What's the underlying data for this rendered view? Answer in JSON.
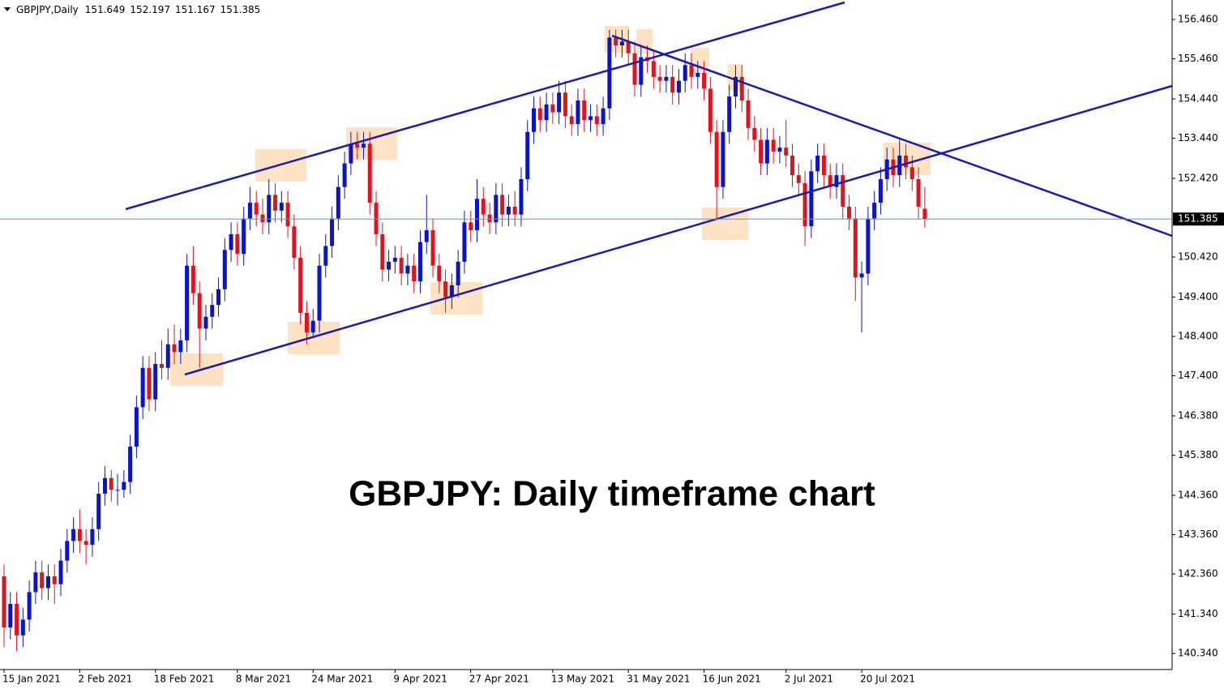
{
  "chart_data": {
    "type": "candlestick",
    "symbol": "GBPJPY,Daily",
    "annotation": "GBPJPY: Daily timeframe chart",
    "up_color": "#0a14c8",
    "down_color": "#e0141e",
    "last_price": 151.385,
    "ylim": [
      139.93,
      156.955
    ],
    "yticks": [
      {
        "value": 140.34,
        "label": "140.340"
      },
      {
        "value": 141.34,
        "label": "141.340"
      },
      {
        "value": 142.36,
        "label": "142.360"
      },
      {
        "value": 143.36,
        "label": "143.360"
      },
      {
        "value": 144.36,
        "label": "144.360"
      },
      {
        "value": 145.38,
        "label": "145.380"
      },
      {
        "value": 146.38,
        "label": "146.380"
      },
      {
        "value": 147.4,
        "label": "147.400"
      },
      {
        "value": 148.4,
        "label": "148.400"
      },
      {
        "value": 149.4,
        "label": "149.400"
      },
      {
        "value": 150.42,
        "label": "150.420"
      },
      {
        "value": 152.42,
        "label": "152.420"
      },
      {
        "value": 153.44,
        "label": "153.440"
      },
      {
        "value": 154.44,
        "label": "154.440"
      },
      {
        "value": 155.46,
        "label": "155.460"
      },
      {
        "value": 156.46,
        "label": "156.460"
      }
    ],
    "categories": [
      "15 Jan 2021",
      null,
      null,
      null,
      null,
      null,
      null,
      null,
      null,
      null,
      null,
      null,
      "2 Feb 2021",
      null,
      null,
      null,
      null,
      null,
      null,
      null,
      null,
      null,
      null,
      null,
      "18 Feb 2021",
      null,
      null,
      null,
      null,
      null,
      null,
      null,
      null,
      null,
      null,
      null,
      null,
      "8 Mar 2021",
      null,
      null,
      null,
      null,
      null,
      null,
      null,
      null,
      null,
      null,
      null,
      "24 Mar 2021",
      null,
      null,
      null,
      null,
      null,
      null,
      null,
      null,
      null,
      null,
      null,
      null,
      "9 Apr 2021",
      null,
      null,
      null,
      null,
      null,
      null,
      null,
      null,
      null,
      null,
      null,
      "27 Apr 2021",
      null,
      null,
      null,
      null,
      null,
      null,
      null,
      null,
      null,
      null,
      null,
      null,
      "13 May 2021",
      null,
      null,
      null,
      null,
      null,
      null,
      null,
      null,
      null,
      null,
      null,
      "31 May 2021",
      null,
      null,
      null,
      null,
      null,
      null,
      null,
      null,
      null,
      null,
      null,
      "16 Jun 2021",
      null,
      null,
      null,
      null,
      null,
      null,
      null,
      null,
      null,
      null,
      null,
      null,
      "2 Jul 2021",
      null,
      null,
      null,
      null,
      null,
      null,
      null,
      null,
      null,
      null,
      null,
      "20 Jul 2021",
      null,
      null,
      null,
      null,
      null,
      null,
      null,
      null,
      null,
      null
    ],
    "open": [
      142.3,
      141.0,
      141.6,
      140.8,
      141.2,
      141.9,
      142.4,
      142.0,
      142.3,
      142.1,
      142.7,
      143.2,
      143.5,
      143.2,
      143.1,
      143.5,
      144.4,
      144.8,
      144.5,
      144.5,
      144.7,
      145.6,
      146.6,
      147.6,
      146.8,
      147.7,
      147.6,
      148.2,
      148.0,
      148.3,
      150.2,
      149.5,
      148.6,
      148.9,
      149.2,
      149.6,
      150.6,
      151.0,
      150.5,
      151.4,
      151.8,
      151.5,
      151.3,
      152.0,
      151.6,
      151.8,
      151.2,
      150.4,
      149.0,
      148.5,
      148.8,
      150.2,
      150.7,
      151.4,
      152.2,
      152.8,
      153.3,
      153.2,
      153.3,
      151.8,
      151.0,
      150.1,
      150.3,
      150.4,
      150.0,
      150.2,
      149.8,
      150.8,
      151.1,
      150.2,
      149.8,
      149.4,
      149.7,
      150.3,
      151.3,
      151.1,
      151.9,
      151.5,
      151.3,
      152.0,
      151.5,
      151.7,
      151.5,
      152.4,
      153.6,
      154.2,
      153.9,
      154.3,
      154.1,
      154.6,
      154.0,
      153.8,
      154.4,
      153.9,
      154.0,
      153.8,
      154.2,
      156.0,
      155.8,
      155.9,
      155.6,
      154.8,
      155.5,
      155.4,
      155.0,
      154.9,
      155.0,
      154.6,
      154.9,
      155.3,
      155.0,
      155.1,
      154.7,
      153.6,
      152.2,
      153.6,
      154.5,
      155.0,
      154.4,
      153.7,
      153.4,
      152.8,
      153.4,
      153.1,
      153.2,
      153.0,
      152.5,
      152.3,
      151.2,
      152.6,
      153.0,
      152.5,
      152.2,
      152.5,
      151.7,
      151.4,
      149.9,
      150.0,
      151.4,
      151.8,
      152.4,
      152.9,
      152.5,
      153.0,
      152.7,
      152.4,
      151.649
    ],
    "high": [
      142.6,
      141.9,
      141.9,
      141.5,
      142.2,
      142.7,
      142.7,
      142.6,
      142.6,
      143.0,
      143.5,
      143.8,
      144.0,
      143.5,
      143.8,
      144.7,
      145.1,
      145.0,
      144.9,
      145.0,
      145.9,
      146.9,
      147.9,
      147.9,
      148.0,
      148.3,
      148.6,
      148.7,
      148.6,
      150.5,
      150.7,
      149.8,
      149.2,
      149.5,
      149.9,
      150.9,
      151.3,
      151.3,
      151.7,
      152.2,
      152.1,
      151.9,
      152.4,
      152.3,
      152.1,
      152.1,
      151.5,
      150.7,
      149.3,
      149.1,
      150.5,
      151.0,
      151.7,
      152.5,
      153.1,
      153.6,
      153.6,
      153.6,
      153.6,
      152.1,
      151.3,
      150.6,
      150.7,
      150.7,
      150.5,
      150.5,
      151.1,
      152.0,
      151.4,
      150.5,
      150.1,
      150.0,
      150.6,
      151.6,
      151.6,
      152.4,
      152.2,
      151.8,
      152.3,
      152.3,
      152.0,
      152.1,
      152.7,
      153.9,
      154.5,
      154.5,
      154.6,
      154.6,
      154.9,
      154.9,
      154.3,
      154.7,
      154.7,
      154.3,
      154.3,
      154.5,
      156.2,
      156.2,
      156.2,
      156.2,
      155.9,
      155.8,
      155.8,
      155.7,
      155.3,
      155.3,
      155.3,
      155.2,
      155.6,
      155.6,
      155.4,
      155.4,
      155.0,
      153.9,
      153.9,
      154.8,
      155.3,
      155.3,
      154.7,
      154.0,
      153.7,
      153.7,
      153.7,
      153.5,
      153.9,
      153.3,
      152.8,
      152.6,
      152.9,
      153.3,
      153.3,
      152.8,
      152.8,
      152.8,
      152.0,
      151.7,
      150.3,
      151.7,
      152.1,
      152.7,
      153.2,
      153.2,
      153.4,
      153.3,
      153.0,
      152.7,
      152.197
    ],
    "low": [
      140.5,
      140.7,
      140.4,
      140.5,
      140.9,
      141.6,
      141.7,
      141.7,
      141.6,
      141.8,
      142.4,
      142.9,
      142.9,
      142.6,
      142.8,
      143.2,
      144.1,
      144.2,
      144.1,
      144.3,
      144.4,
      145.3,
      146.3,
      146.5,
      146.5,
      147.3,
      147.3,
      147.7,
      147.7,
      148.0,
      149.2,
      147.6,
      148.3,
      148.6,
      148.9,
      149.3,
      150.3,
      150.2,
      150.2,
      151.1,
      151.2,
      151.0,
      151.0,
      151.3,
      151.3,
      150.9,
      150.1,
      148.7,
      148.2,
      148.4,
      148.5,
      149.9,
      150.4,
      151.1,
      151.9,
      152.5,
      152.9,
      152.9,
      151.5,
      150.7,
      149.8,
      149.8,
      150.0,
      149.7,
      149.7,
      149.5,
      149.5,
      150.5,
      149.9,
      149.5,
      149.0,
      149.1,
      149.4,
      150.0,
      150.8,
      150.8,
      151.2,
      151.0,
      151.0,
      151.2,
      151.2,
      151.2,
      151.2,
      152.1,
      153.3,
      153.6,
      153.6,
      153.8,
      153.8,
      153.7,
      153.5,
      153.5,
      153.6,
      153.6,
      153.5,
      153.5,
      153.9,
      155.5,
      155.5,
      155.3,
      154.5,
      154.5,
      155.1,
      154.7,
      154.6,
      154.6,
      154.3,
      154.3,
      154.6,
      154.7,
      154.7,
      154.4,
      153.3,
      151.4,
      151.9,
      153.3,
      154.2,
      154.1,
      153.4,
      153.1,
      152.5,
      152.5,
      152.8,
      152.8,
      152.7,
      152.2,
      152.0,
      150.7,
      150.9,
      152.3,
      152.2,
      151.9,
      151.9,
      151.4,
      151.1,
      149.3,
      148.5,
      149.7,
      151.1,
      151.5,
      152.1,
      152.2,
      152.2,
      152.4,
      152.1,
      151.4,
      151.167
    ],
    "close": [
      141.0,
      141.6,
      140.8,
      141.2,
      141.9,
      142.4,
      142.0,
      142.3,
      142.1,
      142.7,
      143.2,
      143.5,
      143.2,
      143.1,
      143.5,
      144.4,
      144.8,
      144.5,
      144.5,
      144.7,
      145.6,
      146.6,
      147.6,
      146.8,
      147.7,
      147.6,
      148.2,
      148.0,
      148.3,
      150.2,
      149.5,
      148.6,
      148.9,
      149.2,
      149.6,
      150.6,
      151.0,
      150.5,
      151.4,
      151.8,
      151.5,
      151.3,
      152.0,
      151.6,
      151.8,
      151.2,
      150.4,
      149.0,
      148.5,
      148.8,
      150.2,
      150.7,
      151.4,
      152.2,
      152.8,
      153.3,
      153.2,
      153.3,
      151.8,
      151.0,
      150.1,
      150.3,
      150.4,
      150.0,
      150.2,
      149.8,
      150.8,
      151.1,
      150.2,
      149.8,
      149.4,
      149.7,
      150.3,
      151.3,
      151.1,
      151.9,
      151.5,
      151.3,
      152.0,
      151.5,
      151.7,
      151.5,
      152.4,
      153.6,
      154.2,
      153.9,
      154.3,
      154.1,
      154.6,
      154.0,
      153.8,
      154.4,
      153.9,
      154.0,
      153.8,
      154.2,
      156.0,
      155.8,
      155.9,
      155.6,
      154.8,
      155.5,
      155.4,
      155.0,
      154.9,
      155.0,
      154.6,
      154.9,
      155.3,
      155.0,
      155.1,
      154.7,
      153.6,
      152.2,
      153.6,
      154.5,
      155.0,
      154.4,
      153.7,
      153.4,
      152.8,
      153.4,
      153.1,
      153.2,
      153.0,
      152.5,
      152.3,
      151.2,
      152.6,
      153.0,
      152.5,
      152.2,
      152.5,
      151.7,
      151.4,
      149.9,
      150.0,
      151.4,
      151.8,
      152.4,
      152.9,
      152.5,
      153.0,
      152.7,
      152.4,
      151.7,
      151.385
    ]
  }
}
